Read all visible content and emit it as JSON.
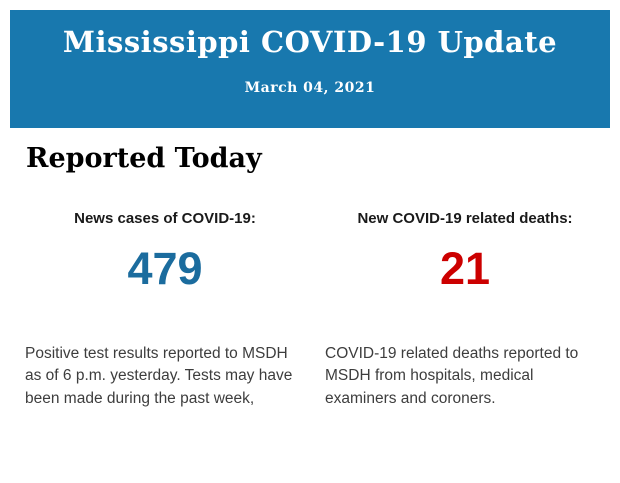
{
  "header": {
    "title": "Mississippi COVID-19 Update",
    "date": "March 04, 2021",
    "background_color": "#1878ae",
    "text_color": "#ffffff"
  },
  "section": {
    "heading": "Reported Today"
  },
  "stats": {
    "cases": {
      "label": "News cases of COVID-19:",
      "value": "479",
      "value_color": "#1b6c9e",
      "description": "Positive test results reported to MSDH as of 6 p.m. yesterday. Tests may have been made during the past week,"
    },
    "deaths": {
      "label": "New COVID-19 related deaths:",
      "value": "21",
      "value_color": "#cc0000",
      "description": "COVID-19 related deaths reported to MSDH from hospitals, medical examiners and coroners."
    }
  }
}
